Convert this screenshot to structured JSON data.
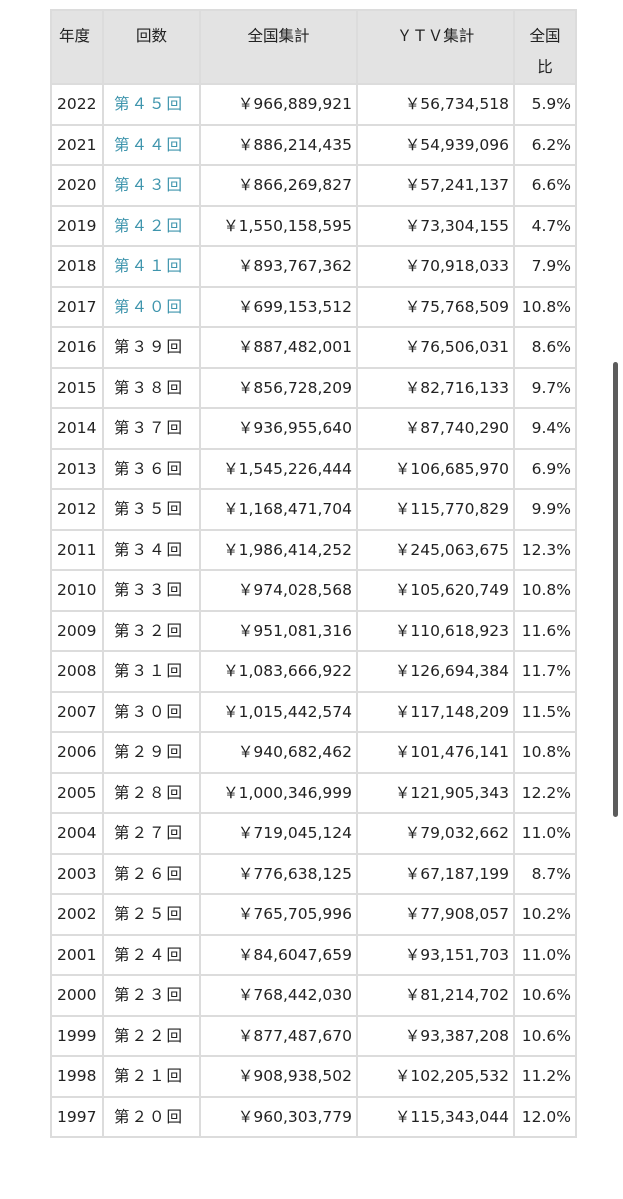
{
  "headers": {
    "year": "年度",
    "round": "回数",
    "total": "全国集計",
    "ytv": "ＹＴＶ集計",
    "ratio": "全国比"
  },
  "rows": [
    {
      "year": "2022",
      "round": "第４５回",
      "total": "￥966,889,921",
      "ytv": "￥56,734,518",
      "ratio": "5.9%",
      "link": true
    },
    {
      "year": "2021",
      "round": "第４４回",
      "total": "￥886,214,435",
      "ytv": "￥54,939,096",
      "ratio": "6.2%",
      "link": true
    },
    {
      "year": "2020",
      "round": "第４３回",
      "total": "￥866,269,827",
      "ytv": "￥57,241,137",
      "ratio": "6.6%",
      "link": true
    },
    {
      "year": "2019",
      "round": "第４２回",
      "total": "￥1,550,158,595",
      "ytv": "￥73,304,155",
      "ratio": "4.7%",
      "link": true
    },
    {
      "year": "2018",
      "round": "第４１回",
      "total": "￥893,767,362",
      "ytv": "￥70,918,033",
      "ratio": "7.9%",
      "link": true
    },
    {
      "year": "2017",
      "round": "第４０回",
      "total": "￥699,153,512",
      "ytv": "￥75,768,509",
      "ratio": "10.8%",
      "link": true
    },
    {
      "year": "2016",
      "round": "第３９回",
      "total": "￥887,482,001",
      "ytv": "￥76,506,031",
      "ratio": "8.6%",
      "link": false
    },
    {
      "year": "2015",
      "round": "第３８回",
      "total": "￥856,728,209",
      "ytv": "￥82,716,133",
      "ratio": "9.7%",
      "link": false
    },
    {
      "year": "2014",
      "round": "第３７回",
      "total": "￥936,955,640",
      "ytv": "￥87,740,290",
      "ratio": "9.4%",
      "link": false
    },
    {
      "year": "2013",
      "round": "第３６回",
      "total": "￥1,545,226,444",
      "ytv": "￥106,685,970",
      "ratio": "6.9%",
      "link": false
    },
    {
      "year": "2012",
      "round": "第３５回",
      "total": "￥1,168,471,704",
      "ytv": "￥115,770,829",
      "ratio": "9.9%",
      "link": false
    },
    {
      "year": "2011",
      "round": "第３４回",
      "total": "￥1,986,414,252",
      "ytv": "￥245,063,675",
      "ratio": "12.3%",
      "link": false
    },
    {
      "year": "2010",
      "round": "第３３回",
      "total": "￥974,028,568",
      "ytv": "￥105,620,749",
      "ratio": "10.8%",
      "link": false
    },
    {
      "year": "2009",
      "round": "第３２回",
      "total": "￥951,081,316",
      "ytv": "￥110,618,923",
      "ratio": "11.6%",
      "link": false
    },
    {
      "year": "2008",
      "round": "第３１回",
      "total": "￥1,083,666,922",
      "ytv": "￥126,694,384",
      "ratio": "11.7%",
      "link": false
    },
    {
      "year": "2007",
      "round": "第３０回",
      "total": "￥1,015,442,574",
      "ytv": "￥117,148,209",
      "ratio": "11.5%",
      "link": false
    },
    {
      "year": "2006",
      "round": "第２９回",
      "total": "￥940,682,462",
      "ytv": "￥101,476,141",
      "ratio": "10.8%",
      "link": false
    },
    {
      "year": "2005",
      "round": "第２８回",
      "total": "￥1,000,346,999",
      "ytv": "￥121,905,343",
      "ratio": "12.2%",
      "link": false
    },
    {
      "year": "2004",
      "round": "第２７回",
      "total": "￥719,045,124",
      "ytv": "￥79,032,662",
      "ratio": "11.0%",
      "link": false
    },
    {
      "year": "2003",
      "round": "第２６回",
      "total": "￥776,638,125",
      "ytv": "￥67,187,199",
      "ratio": "8.7%",
      "link": false
    },
    {
      "year": "2002",
      "round": "第２５回",
      "total": "￥765,705,996",
      "ytv": "￥77,908,057",
      "ratio": "10.2%",
      "link": false
    },
    {
      "year": "2001",
      "round": "第２４回",
      "total": "￥84,6047,659",
      "ytv": "￥93,151,703",
      "ratio": "11.0%",
      "link": false
    },
    {
      "year": "2000",
      "round": "第２３回",
      "total": "￥768,442,030",
      "ytv": "￥81,214,702",
      "ratio": "10.6%",
      "link": false
    },
    {
      "year": "1999",
      "round": "第２２回",
      "total": "￥877,487,670",
      "ytv": "￥93,387,208",
      "ratio": "10.6%",
      "link": false
    },
    {
      "year": "1998",
      "round": "第２１回",
      "total": "￥908,938,502",
      "ytv": "￥102,205,532",
      "ratio": "11.2%",
      "link": false
    },
    {
      "year": "1997",
      "round": "第２０回",
      "total": "￥960,303,779",
      "ytv": "￥115,343,044",
      "ratio": "12.0%",
      "link": false
    }
  ]
}
